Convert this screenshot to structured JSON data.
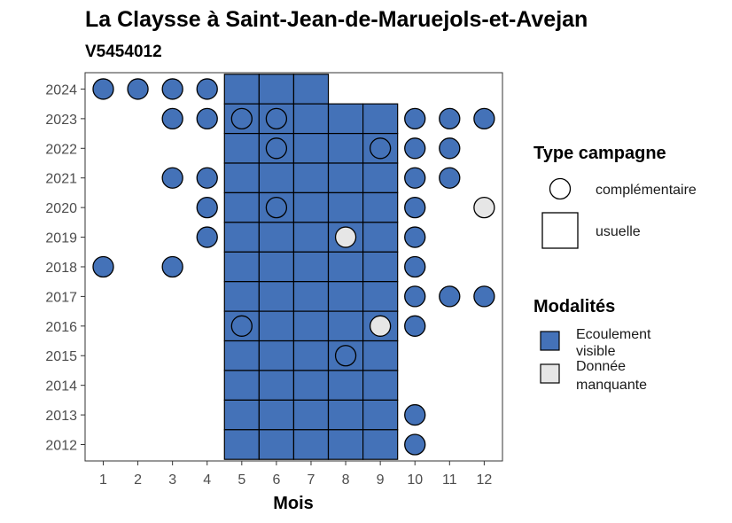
{
  "chart_data": {
    "type": "heatmap",
    "title": "La Claysse à Saint-Jean-de-Maruejols-et-Avejan",
    "subtitle": "V5454012",
    "xlabel": "Mois",
    "ylabel": "",
    "x_ticks": [
      1,
      2,
      3,
      4,
      5,
      6,
      7,
      8,
      9,
      10,
      11,
      12
    ],
    "y_ticks": [
      2012,
      2013,
      2014,
      2015,
      2016,
      2017,
      2018,
      2019,
      2020,
      2021,
      2022,
      2023,
      2024
    ],
    "grid": false,
    "legend_placement": "right",
    "legends": [
      {
        "title": "Type campagne",
        "entries": [
          {
            "key": "complementaire",
            "label": "complémentaire",
            "shape": "circle"
          },
          {
            "key": "usuelle",
            "label": "usuelle",
            "shape": "square"
          }
        ]
      },
      {
        "title": "Modalités",
        "entries": [
          {
            "key": "ecoulement",
            "label_lines": [
              "Ecoulement",
              "visible"
            ],
            "color": "#4472b8"
          },
          {
            "key": "manquante",
            "label_lines": [
              "Donnée",
              "manquante"
            ],
            "color": "#e6e6e6"
          }
        ]
      }
    ],
    "colors": {
      "ecoulement": "#4472b8",
      "manquante": "#e6e6e6"
    },
    "usuelle_cells": [
      {
        "year": 2024,
        "months": [
          5,
          6,
          7
        ]
      },
      {
        "year": 2023,
        "months": [
          5,
          6,
          7,
          8,
          9
        ]
      },
      {
        "year": 2022,
        "months": [
          5,
          6,
          7,
          8,
          9
        ]
      },
      {
        "year": 2021,
        "months": [
          5,
          6,
          7,
          8,
          9
        ]
      },
      {
        "year": 2020,
        "months": [
          5,
          6,
          7,
          8,
          9
        ]
      },
      {
        "year": 2019,
        "months": [
          5,
          6,
          7,
          8,
          9
        ]
      },
      {
        "year": 2018,
        "months": [
          5,
          6,
          7,
          8,
          9
        ]
      },
      {
        "year": 2017,
        "months": [
          5,
          6,
          7,
          8,
          9
        ]
      },
      {
        "year": 2016,
        "months": [
          5,
          6,
          7,
          8,
          9
        ]
      },
      {
        "year": 2015,
        "months": [
          5,
          6,
          7,
          8,
          9
        ]
      },
      {
        "year": 2014,
        "months": [
          5,
          6,
          7,
          8,
          9
        ]
      },
      {
        "year": 2013,
        "months": [
          5,
          6,
          7,
          8,
          9
        ]
      },
      {
        "year": 2012,
        "months": [
          5,
          6,
          7,
          8,
          9
        ]
      }
    ],
    "complementaire_points": [
      {
        "year": 2024,
        "month": 1,
        "modalite": "ecoulement"
      },
      {
        "year": 2024,
        "month": 2,
        "modalite": "ecoulement"
      },
      {
        "year": 2024,
        "month": 3,
        "modalite": "ecoulement"
      },
      {
        "year": 2024,
        "month": 4,
        "modalite": "ecoulement"
      },
      {
        "year": 2023,
        "month": 3,
        "modalite": "ecoulement"
      },
      {
        "year": 2023,
        "month": 4,
        "modalite": "ecoulement"
      },
      {
        "year": 2023,
        "month": 5,
        "modalite": "ecoulement"
      },
      {
        "year": 2023,
        "month": 6,
        "modalite": "ecoulement"
      },
      {
        "year": 2023,
        "month": 10,
        "modalite": "ecoulement"
      },
      {
        "year": 2023,
        "month": 11,
        "modalite": "ecoulement"
      },
      {
        "year": 2023,
        "month": 12,
        "modalite": "ecoulement"
      },
      {
        "year": 2022,
        "month": 6,
        "modalite": "ecoulement"
      },
      {
        "year": 2022,
        "month": 9,
        "modalite": "ecoulement"
      },
      {
        "year": 2022,
        "month": 10,
        "modalite": "ecoulement"
      },
      {
        "year": 2022,
        "month": 11,
        "modalite": "ecoulement"
      },
      {
        "year": 2021,
        "month": 3,
        "modalite": "ecoulement"
      },
      {
        "year": 2021,
        "month": 4,
        "modalite": "ecoulement"
      },
      {
        "year": 2021,
        "month": 10,
        "modalite": "ecoulement"
      },
      {
        "year": 2021,
        "month": 11,
        "modalite": "ecoulement"
      },
      {
        "year": 2020,
        "month": 4,
        "modalite": "ecoulement"
      },
      {
        "year": 2020,
        "month": 6,
        "modalite": "ecoulement"
      },
      {
        "year": 2020,
        "month": 10,
        "modalite": "ecoulement"
      },
      {
        "year": 2020,
        "month": 12,
        "modalite": "manquante"
      },
      {
        "year": 2019,
        "month": 4,
        "modalite": "ecoulement"
      },
      {
        "year": 2019,
        "month": 8,
        "modalite": "manquante"
      },
      {
        "year": 2019,
        "month": 10,
        "modalite": "ecoulement"
      },
      {
        "year": 2018,
        "month": 1,
        "modalite": "ecoulement"
      },
      {
        "year": 2018,
        "month": 3,
        "modalite": "ecoulement"
      },
      {
        "year": 2018,
        "month": 10,
        "modalite": "ecoulement"
      },
      {
        "year": 2017,
        "month": 10,
        "modalite": "ecoulement"
      },
      {
        "year": 2017,
        "month": 11,
        "modalite": "ecoulement"
      },
      {
        "year": 2017,
        "month": 12,
        "modalite": "ecoulement"
      },
      {
        "year": 2016,
        "month": 5,
        "modalite": "ecoulement"
      },
      {
        "year": 2016,
        "month": 9,
        "modalite": "manquante"
      },
      {
        "year": 2016,
        "month": 10,
        "modalite": "ecoulement"
      },
      {
        "year": 2015,
        "month": 8,
        "modalite": "ecoulement"
      },
      {
        "year": 2013,
        "month": 10,
        "modalite": "ecoulement"
      },
      {
        "year": 2012,
        "month": 10,
        "modalite": "ecoulement"
      }
    ]
  }
}
